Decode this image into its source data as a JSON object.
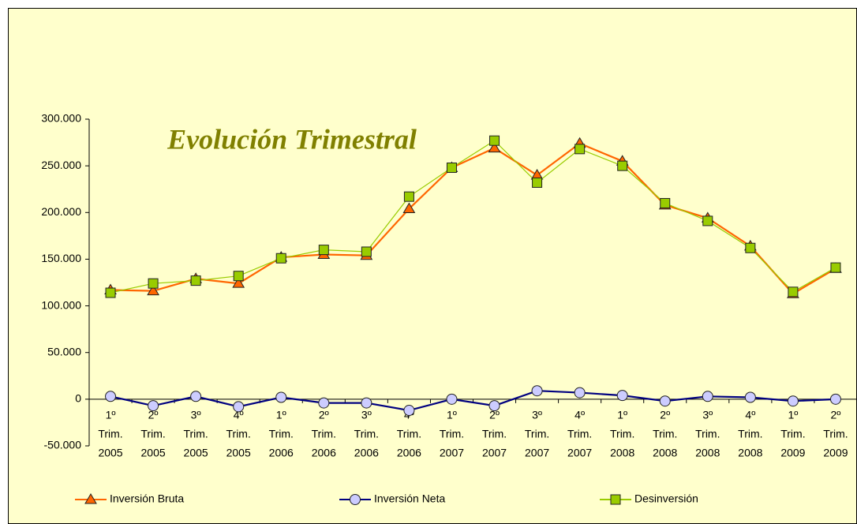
{
  "chart_data": {
    "type": "line",
    "title": "Evolución Trimestral",
    "categories": [
      [
        "1º",
        "Trim.",
        "2005"
      ],
      [
        "2º",
        "Trim.",
        "2005"
      ],
      [
        "3º",
        "Trim.",
        "2005"
      ],
      [
        "4º",
        "Trim.",
        "2005"
      ],
      [
        "1º",
        "Trim.",
        "2006"
      ],
      [
        "2º",
        "Trim.",
        "2006"
      ],
      [
        "3º",
        "Trim.",
        "2006"
      ],
      [
        "4º",
        "Trim.",
        "2006"
      ],
      [
        "1º",
        "Trim.",
        "2007"
      ],
      [
        "2º",
        "Trim.",
        "2007"
      ],
      [
        "3º",
        "Trim.",
        "2007"
      ],
      [
        "4º",
        "Trim.",
        "2007"
      ],
      [
        "1º",
        "Trim.",
        "2008"
      ],
      [
        "2º",
        "Trim.",
        "2008"
      ],
      [
        "3º",
        "Trim.",
        "2008"
      ],
      [
        "4º",
        "Trim.",
        "2008"
      ],
      [
        "1º",
        "Trim.",
        "2009"
      ],
      [
        "2º",
        "Trim.",
        "2009"
      ]
    ],
    "series": [
      {
        "name": "Inversión Bruta",
        "color": "#ff6600",
        "marker": "triangle",
        "values": [
          117000,
          116000,
          129000,
          124000,
          152000,
          155000,
          154000,
          204000,
          248000,
          269000,
          240000,
          274000,
          255000,
          208000,
          194000,
          164000,
          113000,
          140000
        ]
      },
      {
        "name": "Inversión Neta",
        "color": "#000080",
        "marker": "circle",
        "marker_color": "#ccccff",
        "values": [
          3000,
          -7000,
          3000,
          -8000,
          2000,
          -4000,
          -4000,
          -12000,
          0,
          -7000,
          9000,
          7000,
          4000,
          -2000,
          3000,
          2000,
          -2000,
          0
        ]
      },
      {
        "name": "Desinversión",
        "color": "#99cc00",
        "marker": "square",
        "values": [
          114000,
          124000,
          127000,
          132000,
          151000,
          160000,
          158000,
          217000,
          248000,
          277000,
          232000,
          268000,
          250000,
          210000,
          191000,
          162000,
          115000,
          141000
        ]
      }
    ],
    "ylim": [
      -50000,
      300000
    ],
    "yticks": [
      {
        "value": -50000,
        "label": "-50.000"
      },
      0,
      {
        "value": 50000,
        "label": "50.000"
      },
      {
        "value": 100000,
        "label": "100.000"
      },
      {
        "value": 150000,
        "label": "150.000"
      },
      {
        "value": 200000,
        "label": "200.000"
      },
      {
        "value": 250000,
        "label": "250.000"
      },
      {
        "value": 300000,
        "label": "300.000"
      }
    ],
    "grid": false,
    "legend": "bottom",
    "background": "#ffffcc"
  }
}
